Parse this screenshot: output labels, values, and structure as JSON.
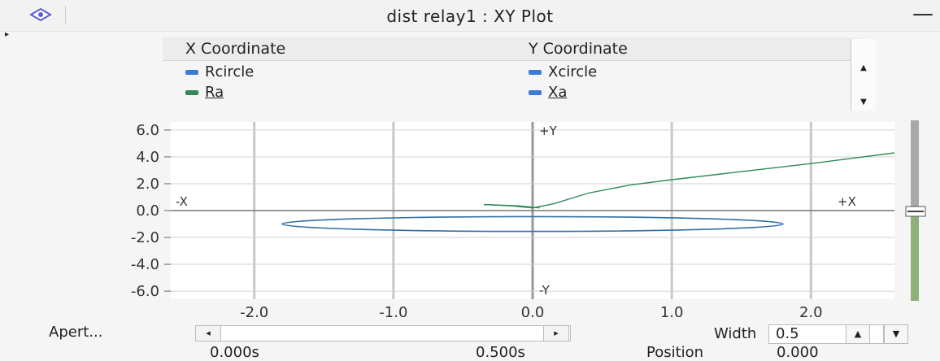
{
  "window": {
    "title": "dist  relay1 : XY Plot",
    "minimize_label": "—",
    "collapse_label": "▸"
  },
  "legend": {
    "x_header": "X Coordinate",
    "y_header": "Y Coordinate",
    "rows": [
      {
        "x_name": "Rcircle",
        "y_name": "Xcircle",
        "x_color": "#3a7bd5",
        "y_color": "#3a7bd5"
      },
      {
        "x_name": "Ra",
        "y_name": "Xa",
        "x_color": "#2e8b57",
        "y_color": "#3a7bd5"
      }
    ],
    "scroll_up": "▲",
    "scroll_down": "▼"
  },
  "chart_data": {
    "type": "scatter",
    "title": "",
    "xlim": [
      -2.6,
      2.6
    ],
    "ylim": [
      -6.6,
      6.6
    ],
    "x_ticks": [
      "-2.0",
      "-1.0",
      "0.0",
      "1.0",
      "2.0"
    ],
    "y_ticks": [
      "6.0",
      "4.0",
      "2.0",
      "0.0",
      "-2.0",
      "-4.0",
      "-6.0"
    ],
    "axis_labels": {
      "plus_x": "+X",
      "minus_x": "-X",
      "plus_y": "+Y",
      "minus_y": "-Y"
    },
    "grid": true,
    "series": [
      {
        "name": "Xcircle",
        "color": "#2f6fa3",
        "shape": "ellipse",
        "center": [
          0.0,
          -1.0
        ],
        "radius_x": 1.8,
        "radius_y": 0.55
      },
      {
        "name": "Xa",
        "color": "#2e8b57",
        "points": [
          [
            -0.35,
            0.45
          ],
          [
            -0.15,
            0.35
          ],
          [
            0.0,
            0.2
          ],
          [
            0.15,
            0.5
          ],
          [
            0.4,
            1.3
          ],
          [
            0.7,
            1.9
          ],
          [
            1.0,
            2.3
          ],
          [
            1.5,
            2.9
          ],
          [
            2.0,
            3.5
          ],
          [
            2.6,
            4.3
          ]
        ]
      },
      {
        "name": "Ra",
        "color": "#2e8b57",
        "points": [
          [
            -0.35,
            0.45
          ],
          [
            -0.1,
            0.35
          ],
          [
            0.05,
            0.2
          ]
        ]
      }
    ]
  },
  "controls": {
    "aperture_label": "Apert...",
    "aperture_left": "◂",
    "aperture_right": "▸",
    "time_start": "0.000s",
    "time_end": "0.500s",
    "width_label": "Width",
    "width_value": "0.5",
    "width_up": "▲",
    "width_down": "▼",
    "position_label": "Position",
    "position_value": "0.000"
  }
}
